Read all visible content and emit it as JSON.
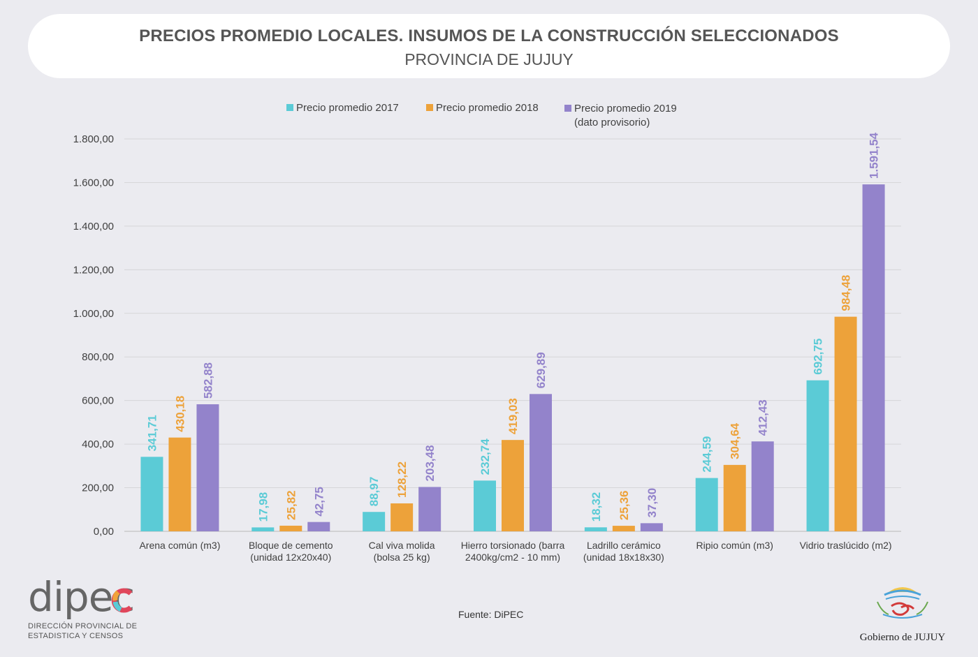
{
  "header": {
    "title": "PRECIOS PROMEDIO LOCALES. INSUMOS DE LA CONSTRUCCIÓN SELECCIONADOS",
    "subtitle": "PROVINCIA DE JUJUY"
  },
  "chart_data": {
    "type": "bar",
    "categories": [
      [
        "Arena común (m3)"
      ],
      [
        "Bloque de cemento",
        "(unidad 12x20x40)"
      ],
      [
        "Cal viva molida",
        "(bolsa 25 kg)"
      ],
      [
        "Hierro torsionado (barra",
        "2400kg/cm2 - 10 mm)"
      ],
      [
        "Ladrillo cerámico",
        "(unidad 18x18x30)"
      ],
      [
        "Ripio común (m3)"
      ],
      [
        "Vidrio traslúcido (m2)"
      ]
    ],
    "series": [
      {
        "name": "Precio promedio 2017",
        "color": "#5bcbd6",
        "values": [
          341.71,
          17.98,
          88.97,
          232.74,
          18.32,
          244.59,
          692.75
        ],
        "labels": [
          "341,71",
          "17,98",
          "88,97",
          "232,74",
          "18,32",
          "244,59",
          "692,75"
        ]
      },
      {
        "name": "Precio promedio 2018",
        "color": "#eda23a",
        "values": [
          430.18,
          25.82,
          128.22,
          419.03,
          25.36,
          304.64,
          984.48
        ],
        "labels": [
          "430,18",
          "25,82",
          "128,22",
          "419,03",
          "25,36",
          "304,64",
          "984,48"
        ]
      },
      {
        "name": "Precio promedio 2019 (dato provisorio)",
        "name_lines": [
          "Precio promedio 2019",
          "(dato provisorio)"
        ],
        "color": "#9383cb",
        "values": [
          582.88,
          42.75,
          203.48,
          629.89,
          37.3,
          412.43,
          1591.54
        ],
        "labels": [
          "582,88",
          "42,75",
          "203,48",
          "629,89",
          "37,30",
          "412,43",
          "1.591,54"
        ]
      }
    ],
    "yticks": [
      0,
      200,
      400,
      600,
      800,
      1000,
      1200,
      1400,
      1600,
      1800
    ],
    "ytick_labels": [
      "0,00",
      "200,00",
      "400,00",
      "600,00",
      "800,00",
      "1.000,00",
      "1.200,00",
      "1.400,00",
      "1.600,00",
      "1.800,00"
    ],
    "ylim": [
      0,
      1800
    ],
    "grid": true,
    "legend_position": "top"
  },
  "footer": {
    "source": "Fuente: DiPEC",
    "dipec_logo": "dipec",
    "dipec_line1": "DIRECCIÓN PROVINCIAL DE",
    "dipec_line2": "ESTADISTICA Y CENSOS",
    "gov_text": "Gobierno de JUJUY"
  }
}
